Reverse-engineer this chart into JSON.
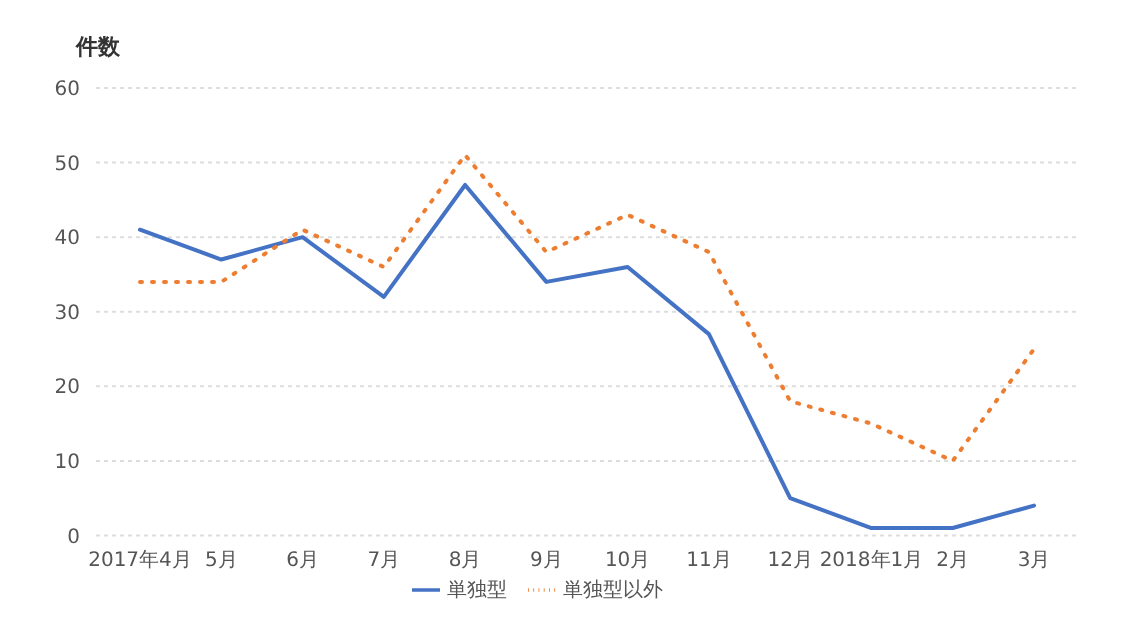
{
  "chart_data": {
    "type": "line",
    "ylabel": "件数",
    "categories": [
      "2017年4月",
      "5月",
      "6月",
      "7月",
      "8月",
      "9月",
      "10月",
      "11月",
      "12月",
      "2018年1月",
      "2月",
      "3月"
    ],
    "series": [
      {
        "name": "単独型",
        "color": "#4472c4",
        "line_style": "solid",
        "values": [
          41,
          37,
          40,
          32,
          47,
          34,
          36,
          27,
          5,
          1,
          1,
          4
        ]
      },
      {
        "name": "単独型以外",
        "color": "#ed7d31",
        "line_style": "dotted",
        "values": [
          34,
          34,
          41,
          36,
          51,
          38,
          43,
          38,
          18,
          15,
          10,
          25
        ]
      }
    ],
    "ylim": [
      0,
      60
    ],
    "yticks": [
      0,
      10,
      20,
      30,
      40,
      50,
      60
    ],
    "grid": "y",
    "legend": "bottom",
    "marker": "none"
  }
}
